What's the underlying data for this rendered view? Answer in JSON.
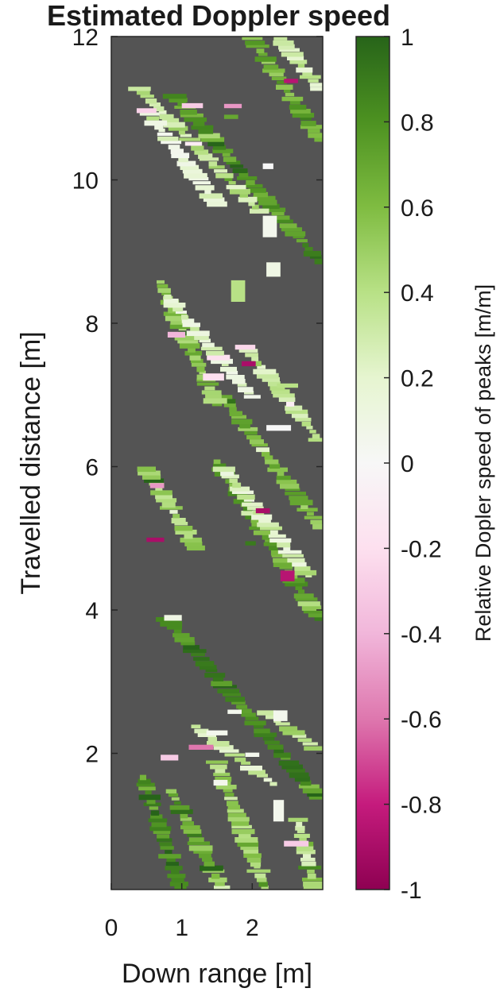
{
  "chart_data": {
    "type": "heatmap",
    "title": "Estimated Doppler speed",
    "xlabel": "Down range [m]",
    "ylabel": "Travelled distance [m]",
    "xlim": [
      0,
      3
    ],
    "ylim": [
      0.1,
      12
    ],
    "x_ticks": [
      0,
      1,
      2
    ],
    "x_tick_labels": [
      "0",
      "1",
      "2"
    ],
    "y_ticks": [
      2,
      4,
      6,
      8,
      10,
      12
    ],
    "y_tick_labels": [
      "2",
      "4",
      "6",
      "8",
      "10",
      "12"
    ],
    "background_color": "#545454",
    "colorbar": {
      "label": "Relative Dopler speed of peaks [m/m]",
      "limits": [
        -1,
        1
      ],
      "ticks": [
        1,
        0.8,
        0.6,
        0.4,
        0.2,
        0,
        -0.2,
        -0.4,
        -0.6,
        -0.8,
        -1
      ],
      "tick_labels": [
        "1",
        "0.8",
        "0.6",
        "0.4",
        "0.2",
        "0",
        "-0.2",
        "-0.4",
        "-0.6",
        "-0.8",
        "-1"
      ],
      "colormap": [
        "#8e0152",
        "#c51b7d",
        "#de77ae",
        "#f1b6da",
        "#fde0ef",
        "#f7f7f7",
        "#e6f5d0",
        "#b8e186",
        "#7fbc41",
        "#4d9221",
        "#276419"
      ]
    },
    "traces": [
      {
        "x0": 1.0,
        "y0": 0.1,
        "x1": 0.45,
        "y1": 1.7,
        "value": 0.75
      },
      {
        "x0": 1.6,
        "y0": 0.1,
        "x1": 0.85,
        "y1": 1.5,
        "value": 0.6
      },
      {
        "x0": 2.2,
        "y0": 0.1,
        "x1": 1.5,
        "y1": 1.9,
        "value": 0.45
      },
      {
        "x0": 2.9,
        "y0": 0.1,
        "x1": 2.65,
        "y1": 1.1,
        "value": 0.35
      },
      {
        "x0": 2.95,
        "y0": 1.4,
        "x1": 0.8,
        "y1": 3.9,
        "value": 0.85
      },
      {
        "x0": 2.3,
        "y0": 1.6,
        "x1": 1.2,
        "y1": 2.4,
        "value": 0.3
      },
      {
        "x0": 2.9,
        "y0": 2.1,
        "x1": 2.2,
        "y1": 2.6,
        "value": 0.4
      },
      {
        "x0": 2.95,
        "y0": 3.9,
        "x1": 1.5,
        "y1": 6.1,
        "value": 0.7
      },
      {
        "x0": 2.8,
        "y0": 4.5,
        "x1": 1.6,
        "y1": 6.0,
        "value": 0.25
      },
      {
        "x0": 1.2,
        "y0": 4.9,
        "x1": 0.5,
        "y1": 6.0,
        "value": 0.5
      },
      {
        "x0": 2.95,
        "y0": 5.2,
        "x1": 1.6,
        "y1": 7.0,
        "value": 0.6
      },
      {
        "x0": 2.95,
        "y0": 6.4,
        "x1": 1.9,
        "y1": 7.7,
        "value": 0.3
      },
      {
        "x0": 1.5,
        "y0": 6.9,
        "x1": 0.7,
        "y1": 8.6,
        "value": 0.55
      },
      {
        "x0": 2.0,
        "y0": 7.0,
        "x1": 0.8,
        "y1": 8.4,
        "value": 0.2
      },
      {
        "x0": 2.95,
        "y0": 8.9,
        "x1": 0.9,
        "y1": 11.2,
        "value": 0.75
      },
      {
        "x0": 2.1,
        "y0": 9.6,
        "x1": 0.4,
        "y1": 11.3,
        "value": 0.35
      },
      {
        "x0": 1.5,
        "y0": 9.7,
        "x1": 0.5,
        "y1": 11.0,
        "value": 0.15
      },
      {
        "x0": 2.95,
        "y0": 10.6,
        "x1": 2.0,
        "y1": 12.0,
        "value": 0.65
      },
      {
        "x0": 2.95,
        "y0": 11.3,
        "x1": 2.4,
        "y1": 12.0,
        "value": 0.3
      }
    ],
    "patches": [
      {
        "x": 0.75,
        "y": 3.85,
        "w": 0.25,
        "h": 0.08,
        "value": 0.1
      },
      {
        "x": 0.7,
        "y": 1.9,
        "w": 0.25,
        "h": 0.08,
        "value": -0.3
      },
      {
        "x": 1.35,
        "y": 2.25,
        "w": 0.3,
        "h": 0.07,
        "value": 0.05
      },
      {
        "x": 1.1,
        "y": 2.05,
        "w": 0.35,
        "h": 0.07,
        "value": -0.6
      },
      {
        "x": 2.3,
        "y": 2.45,
        "w": 0.2,
        "h": 0.15,
        "value": 0.05
      },
      {
        "x": 0.8,
        "y": 7.8,
        "w": 0.25,
        "h": 0.08,
        "value": -0.4
      },
      {
        "x": 1.85,
        "y": 7.4,
        "w": 0.2,
        "h": 0.07,
        "value": -0.9
      },
      {
        "x": 1.3,
        "y": 7.2,
        "w": 0.3,
        "h": 0.1,
        "value": -0.2
      },
      {
        "x": 0.55,
        "y": 5.7,
        "w": 0.2,
        "h": 0.07,
        "value": -0.5
      },
      {
        "x": 0.5,
        "y": 4.95,
        "w": 0.25,
        "h": 0.06,
        "value": -0.9
      },
      {
        "x": 1.0,
        "y": 11.0,
        "w": 0.3,
        "h": 0.07,
        "value": -0.3
      },
      {
        "x": 1.6,
        "y": 11.0,
        "w": 0.25,
        "h": 0.06,
        "value": -0.5
      },
      {
        "x": 2.45,
        "y": 11.35,
        "w": 0.2,
        "h": 0.06,
        "value": -0.85
      },
      {
        "x": 2.15,
        "y": 10.15,
        "w": 0.15,
        "h": 0.08,
        "value": 0.0
      },
      {
        "x": 2.15,
        "y": 9.2,
        "w": 0.2,
        "h": 0.3,
        "value": 0.05
      },
      {
        "x": 2.2,
        "y": 8.65,
        "w": 0.2,
        "h": 0.2,
        "value": 0.1
      },
      {
        "x": 1.9,
        "y": 4.9,
        "w": 0.15,
        "h": 0.06,
        "value": 0.9
      },
      {
        "x": 2.4,
        "y": 4.4,
        "w": 0.2,
        "h": 0.15,
        "value": -0.85
      },
      {
        "x": 2.2,
        "y": 6.5,
        "w": 0.35,
        "h": 0.08,
        "value": 0.0
      },
      {
        "x": 2.05,
        "y": 5.35,
        "w": 0.2,
        "h": 0.07,
        "value": -0.9
      },
      {
        "x": 1.45,
        "y": 1.55,
        "w": 0.2,
        "h": 0.08,
        "value": 0.05
      },
      {
        "x": 1.9,
        "y": 1.95,
        "w": 0.2,
        "h": 0.06,
        "value": 0.05
      },
      {
        "x": 2.3,
        "y": 1.05,
        "w": 0.15,
        "h": 0.3,
        "value": 0.05
      },
      {
        "x": 2.45,
        "y": 0.7,
        "w": 0.35,
        "h": 0.08,
        "value": -0.3
      },
      {
        "x": 1.65,
        "y": 2.55,
        "w": 0.2,
        "h": 0.06,
        "value": 0.05
      },
      {
        "x": 1.7,
        "y": 8.3,
        "w": 0.2,
        "h": 0.3,
        "value": 0.4
      },
      {
        "x": 2.35,
        "y": 7.1,
        "w": 0.3,
        "h": 0.06,
        "value": 0.4
      },
      {
        "x": 1.6,
        "y": 10.85,
        "w": 0.2,
        "h": 0.06,
        "value": 0.7
      }
    ]
  }
}
